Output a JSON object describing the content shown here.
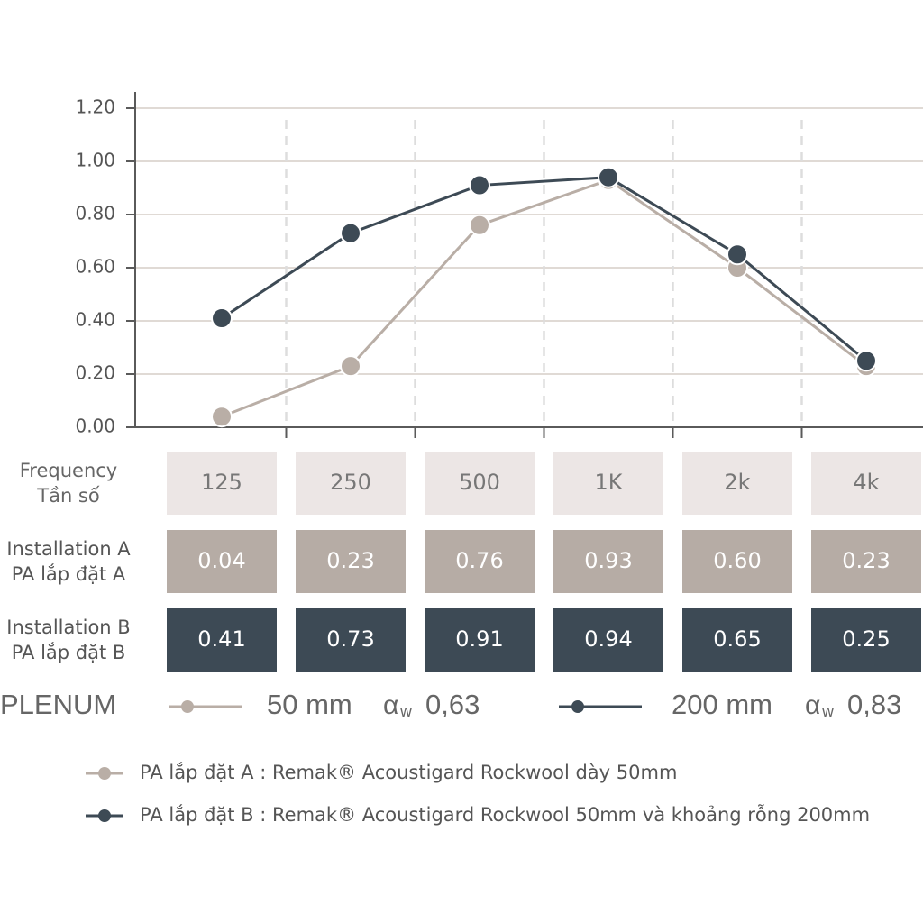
{
  "chart_data": {
    "type": "line",
    "categories": [
      "125",
      "250",
      "500",
      "1K",
      "2k",
      "4k"
    ],
    "row_headers": [
      [
        "Frequency",
        "Tần số"
      ],
      [
        "Installation A",
        "PA lắp đặt A"
      ],
      [
        "Installation B",
        "PA lắp đặt B"
      ]
    ],
    "series": [
      {
        "name": "PA lắp đặt A : Remak® Acoustigard Rockwool dày 50mm",
        "color": "#b9aea6",
        "cell_color": "#b6aca5",
        "values": [
          0.04,
          0.23,
          0.76,
          0.93,
          0.6,
          0.23
        ],
        "value_labels": [
          "0.04",
          "0.23",
          "0.76",
          "0.93",
          "0.60",
          "0.23"
        ]
      },
      {
        "name": "PA lắp đặt B : Remak® Acoustigard Rockwool 50mm và khoảng rỗng 200mm",
        "color": "#3d4a55",
        "cell_color": "#3d4a55",
        "values": [
          0.41,
          0.73,
          0.91,
          0.94,
          0.65,
          0.25
        ],
        "value_labels": [
          "0.41",
          "0.73",
          "0.91",
          "0.94",
          "0.65",
          "0.25"
        ]
      }
    ],
    "ylim": [
      0,
      1.2
    ],
    "yticks": [
      {
        "value": 0,
        "label": "0.00"
      },
      {
        "value": 0.2,
        "label": "0.20"
      },
      {
        "value": 0.4,
        "label": "0.40"
      },
      {
        "value": 0.6,
        "label": "0.60"
      },
      {
        "value": 0.8,
        "label": "0.80"
      },
      {
        "value": 1,
        "label": "1.00"
      },
      {
        "value": 1.2,
        "label": "1.20"
      }
    ],
    "grid": true,
    "plenum": {
      "label": "PLENUM",
      "items": [
        {
          "thickness": "50 mm",
          "alpha": "α",
          "sub": "w",
          "value": "0,63"
        },
        {
          "thickness": "200 mm",
          "alpha": "α",
          "sub": "w",
          "value": "0,83"
        }
      ]
    }
  }
}
